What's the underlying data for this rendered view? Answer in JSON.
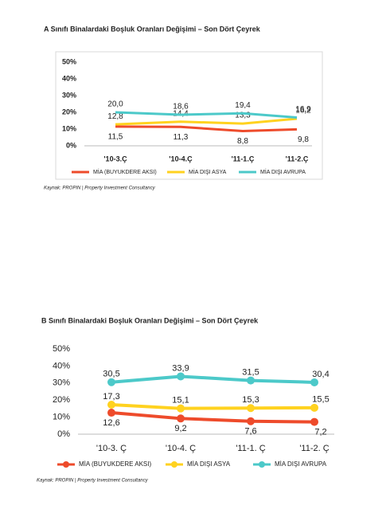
{
  "chart_data": [
    {
      "type": "line",
      "title": "A Sınıfı Binalardaki Boşluk Oranları Değişimi – Son Dört Çeyrek",
      "categories": [
        "'10-3.Ç",
        "'10-4.Ç",
        "'11-1.Ç",
        "'11-2.Ç"
      ],
      "series": [
        {
          "name": "MİA (BUYUKDERE AKSI)",
          "color": "#ee4b2b",
          "values": [
            11.5,
            11.3,
            8.8,
            9.8
          ],
          "value_labels": [
            "11,5",
            "11,3",
            "8,8",
            "9,8"
          ]
        },
        {
          "name": "MİA DIŞI ASYA",
          "color": "#ffd21f",
          "values": [
            12.8,
            14.4,
            13.3,
            16.2
          ],
          "value_labels": [
            "12,8",
            "14,4",
            "13,3",
            "16,2"
          ]
        },
        {
          "name": "MİA DIŞI AVRUPA",
          "color": "#4cc9c9",
          "values": [
            20.0,
            18.6,
            19.4,
            16.9
          ],
          "value_labels": [
            "20,0",
            "18,6",
            "19,4",
            "16,9"
          ]
        }
      ],
      "ylim": [
        0,
        50
      ],
      "yticks": [
        {
          "value": 0,
          "label": "0%"
        },
        {
          "value": 10,
          "label": "10%"
        },
        {
          "value": 20,
          "label": "20%"
        },
        {
          "value": 30,
          "label": "30%"
        },
        {
          "value": 40,
          "label": "40%"
        },
        {
          "value": 50,
          "label": "50%"
        }
      ],
      "markers": false,
      "source": "Kaynak: PROPIN | Property Investment Consultancy"
    },
    {
      "type": "line",
      "title": "B Sınıfı Binalardaki Boşluk Oranları Değişimi – Son Dört Çeyrek",
      "categories": [
        "'10-3. Ç",
        "'10-4. Ç",
        "'11-1. Ç",
        "'11-2. Ç"
      ],
      "series": [
        {
          "name": "MİA (BUYUKDERE AKSI)",
          "color": "#ee4b2b",
          "values": [
            12.6,
            9.2,
            7.6,
            7.2
          ],
          "value_labels": [
            "12,6",
            "9,2",
            "7,6",
            "7,2"
          ]
        },
        {
          "name": "MİA DIŞI ASYA",
          "color": "#ffd21f",
          "values": [
            17.3,
            15.1,
            15.3,
            15.5
          ],
          "value_labels": [
            "17,3",
            "15,1",
            "15,3",
            "15,5"
          ]
        },
        {
          "name": "MİA DIŞI AVRUPA",
          "color": "#4cc9c9",
          "values": [
            30.5,
            33.9,
            31.5,
            30.4
          ],
          "value_labels": [
            "30,5",
            "33,9",
            "31,5",
            "30,4"
          ]
        }
      ],
      "ylim": [
        0,
        50
      ],
      "yticks": [
        {
          "value": 0,
          "label": "0%"
        },
        {
          "value": 10,
          "label": "10%"
        },
        {
          "value": 20,
          "label": "20%"
        },
        {
          "value": 30,
          "label": "30%"
        },
        {
          "value": 40,
          "label": "40%"
        },
        {
          "value": 50,
          "label": "50%"
        }
      ],
      "markers": true,
      "source": "Kaynak: PROPIN | Property Investment Consultancy"
    }
  ]
}
